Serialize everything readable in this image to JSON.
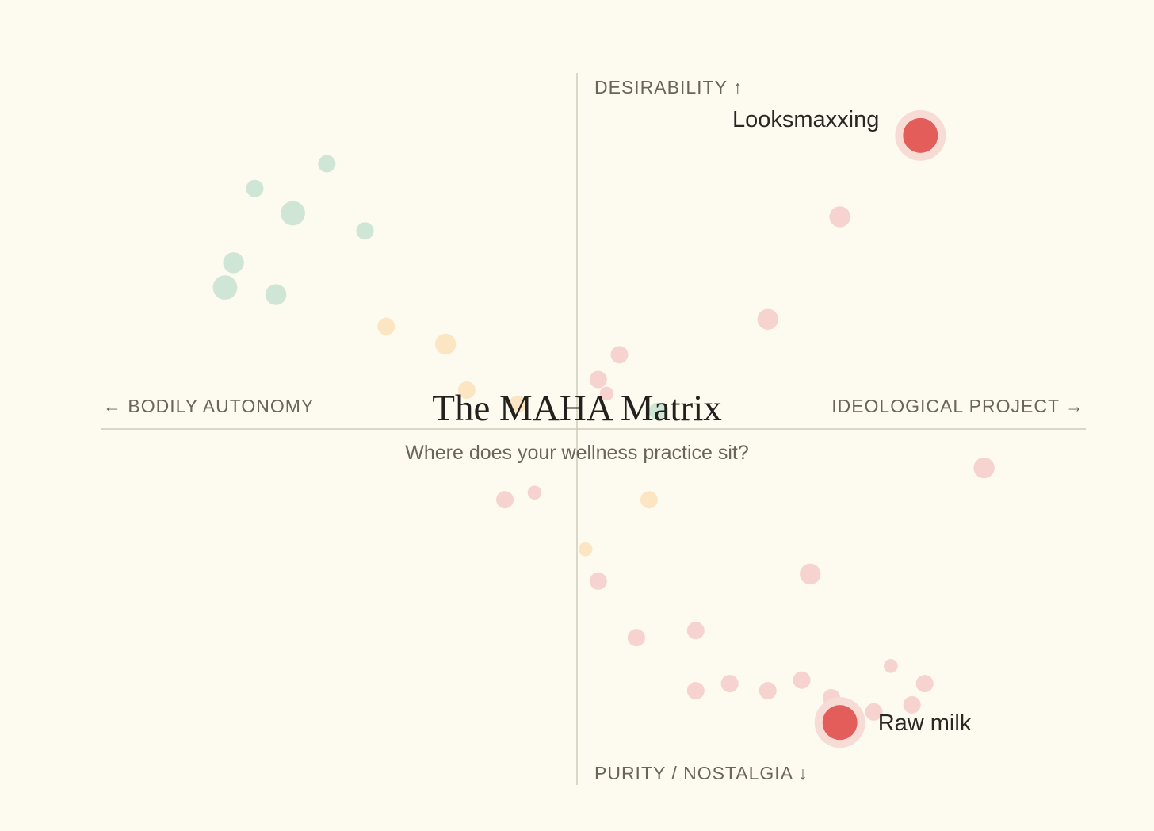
{
  "chart_data": {
    "type": "scatter",
    "title": "The MAHA Matrix",
    "subtitle": "Where does your wellness practice sit?",
    "x_axis": {
      "negative_label": "← BODILY AUTONOMY",
      "positive_label": "IDEOLOGICAL PROJECT →"
    },
    "y_axis": {
      "positive_label": "DESIRABILITY ↑",
      "negative_label": "PURITY / NOSTALGIA ↓"
    },
    "xlim": [
      -1,
      1
    ],
    "ylim": [
      -1,
      1
    ],
    "grid": false,
    "colors": {
      "background": "#fdfaef",
      "axis": "#cfc9bc",
      "green": "#cfe6d6",
      "orange": "#fce5c3",
      "pink": "#f6d3cf",
      "highlight": "#e35d5b",
      "highlight_halo": "#f7dcd6"
    },
    "series": [
      {
        "color_key": "green",
        "points": [
          {
            "x": -0.59,
            "y": 0.75,
            "size": 1.0
          },
          {
            "x": -0.76,
            "y": 0.68,
            "size": 1.0
          },
          {
            "x": -0.67,
            "y": 0.61,
            "size": 1.4
          },
          {
            "x": -0.5,
            "y": 0.56,
            "size": 1.0
          },
          {
            "x": -0.81,
            "y": 0.47,
            "size": 1.2
          },
          {
            "x": -0.83,
            "y": 0.4,
            "size": 1.4
          },
          {
            "x": -0.71,
            "y": 0.38,
            "size": 1.2
          },
          {
            "x": 0.19,
            "y": 0.05,
            "size": 1.0
          }
        ]
      },
      {
        "color_key": "orange",
        "points": [
          {
            "x": -0.45,
            "y": 0.29,
            "size": 1.0
          },
          {
            "x": -0.31,
            "y": 0.24,
            "size": 1.2
          },
          {
            "x": -0.26,
            "y": 0.11,
            "size": 1.0
          },
          {
            "x": -0.14,
            "y": 0.07,
            "size": 1.0
          },
          {
            "x": 0.17,
            "y": -0.2,
            "size": 1.0
          },
          {
            "x": 0.02,
            "y": -0.34,
            "size": 0.8
          }
        ]
      },
      {
        "color_key": "pink",
        "points": [
          {
            "x": 0.62,
            "y": 0.6,
            "size": 1.2
          },
          {
            "x": 0.45,
            "y": 0.31,
            "size": 1.2
          },
          {
            "x": 0.1,
            "y": 0.21,
            "size": 1.0
          },
          {
            "x": 0.05,
            "y": 0.14,
            "size": 1.0
          },
          {
            "x": 0.07,
            "y": 0.1,
            "size": 0.8
          },
          {
            "x": 0.96,
            "y": -0.11,
            "size": 1.2
          },
          {
            "x": -0.17,
            "y": -0.2,
            "size": 1.0
          },
          {
            "x": -0.1,
            "y": -0.18,
            "size": 0.8
          },
          {
            "x": 0.55,
            "y": -0.41,
            "size": 1.2
          },
          {
            "x": 0.05,
            "y": -0.43,
            "size": 1.0
          },
          {
            "x": 0.28,
            "y": -0.57,
            "size": 1.0
          },
          {
            "x": 0.14,
            "y": -0.59,
            "size": 1.0
          },
          {
            "x": 0.53,
            "y": -0.71,
            "size": 1.0
          },
          {
            "x": 0.36,
            "y": -0.72,
            "size": 1.0
          },
          {
            "x": 0.28,
            "y": -0.74,
            "size": 1.0
          },
          {
            "x": 0.45,
            "y": -0.74,
            "size": 1.0
          },
          {
            "x": 0.6,
            "y": -0.76,
            "size": 1.0
          },
          {
            "x": 0.74,
            "y": -0.67,
            "size": 0.8
          },
          {
            "x": 0.82,
            "y": -0.72,
            "size": 1.0
          },
          {
            "x": 0.7,
            "y": -0.8,
            "size": 1.0
          },
          {
            "x": 0.79,
            "y": -0.78,
            "size": 1.0
          }
        ]
      }
    ],
    "highlights": [
      {
        "label": "Looksmaxxing",
        "x": 0.81,
        "y": 0.83,
        "label_position": "left"
      },
      {
        "label": "Raw milk",
        "x": 0.62,
        "y": -0.83,
        "label_position": "right"
      }
    ]
  }
}
